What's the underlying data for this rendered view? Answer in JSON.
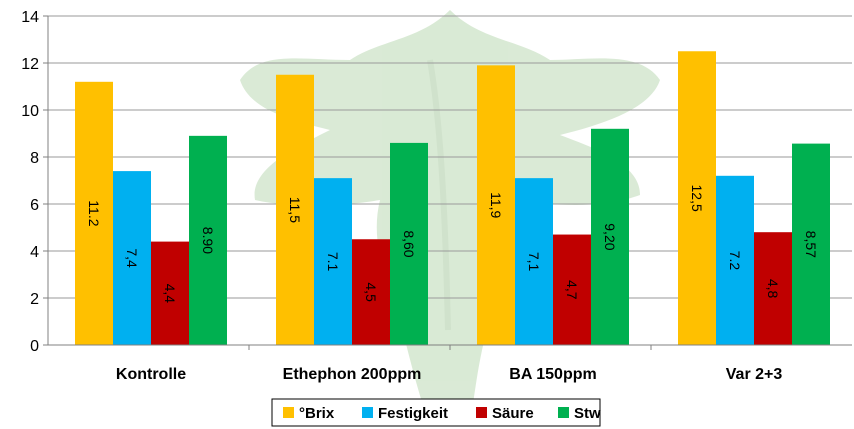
{
  "chart_data": {
    "type": "bar",
    "categories": [
      "Kontrolle",
      "Ethephon 200ppm",
      "BA 150ppm",
      "Var 2+3"
    ],
    "series": [
      {
        "name": "°Brix",
        "color": "#ffc000",
        "values": [
          11.2,
          11.5,
          11.9,
          12.5
        ],
        "labels": [
          "11.2",
          "11,5",
          "11,9",
          "12,5"
        ]
      },
      {
        "name": "Festigkeit",
        "color": "#00b0f0",
        "values": [
          7.4,
          7.1,
          7.1,
          7.2
        ],
        "labels": [
          "7,4",
          "7.1",
          "7,1",
          "7.2"
        ]
      },
      {
        "name": "Säure",
        "color": "#c00000",
        "values": [
          4.4,
          4.5,
          4.7,
          4.8
        ],
        "labels": [
          "4,4",
          "4,5",
          "4,7",
          "4,8"
        ]
      },
      {
        "name": "Stw",
        "color": "#00b050",
        "values": [
          8.9,
          8.6,
          9.2,
          8.57
        ],
        "labels": [
          "8.90",
          "8,60",
          "9,20",
          "8,57"
        ]
      }
    ],
    "yticks": [
      "0",
      "2",
      "4",
      "6",
      "8",
      "10",
      "12",
      "14"
    ],
    "ylim": [
      0,
      14
    ],
    "title": "",
    "xlabel": "",
    "ylabel": "",
    "grid": true,
    "legend": "bottom-center",
    "background_image": "faded-green-plant"
  }
}
